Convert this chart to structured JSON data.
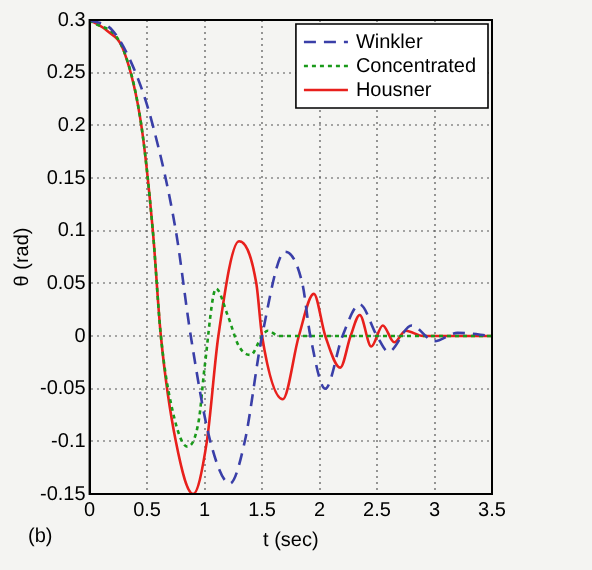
{
  "chart_data": {
    "type": "line",
    "xlabel": "t (sec)",
    "ylabel": "θ (rad)",
    "annotations": [
      "(b)"
    ],
    "xlim": [
      0,
      3.5
    ],
    "ylim": [
      -0.15,
      0.3
    ],
    "xticks": [
      0,
      0.5,
      1,
      1.5,
      2,
      2.5,
      3,
      3.5
    ],
    "yticks": [
      -0.15,
      -0.1,
      -0.05,
      0,
      0.05,
      0.1,
      0.15,
      0.2,
      0.25,
      0.3
    ],
    "grid": true,
    "legend": "top right",
    "marker": "none",
    "series": [
      {
        "name": "Winkler",
        "color": "#3a3fa8",
        "line_style": "dashed",
        "x": [
          0,
          0.2,
          0.4,
          0.55,
          0.75,
          0.88,
          1.05,
          1.22,
          1.35,
          1.5,
          1.7,
          1.85,
          1.92,
          2.05,
          2.2,
          2.35,
          2.5,
          2.6,
          2.8,
          3.0,
          3.2,
          3.5
        ],
        "values": [
          0.3,
          0.29,
          0.25,
          0.2,
          0.1,
          0,
          -0.1,
          -0.14,
          -0.1,
          0,
          0.08,
          0.05,
          0,
          -0.05,
          0,
          0.03,
          0,
          -0.015,
          0.01,
          -0.005,
          0.003,
          0
        ]
      },
      {
        "name": "Concentrated",
        "color": "#1a9a1a",
        "line_style": "dotted",
        "x": [
          0,
          0.3,
          0.45,
          0.55,
          0.62,
          0.72,
          0.85,
          0.95,
          1.0,
          1.1,
          1.2,
          1.3,
          1.4,
          1.5,
          1.55,
          1.65,
          3.5
        ],
        "values": [
          0.3,
          0.27,
          0.2,
          0.1,
          0,
          -0.07,
          -0.105,
          -0.08,
          -0.03,
          0.045,
          0.02,
          -0.01,
          -0.018,
          0,
          0.005,
          0,
          0
        ]
      },
      {
        "name": "Housner",
        "color": "#e8201c",
        "line_style": "solid",
        "x": [
          0,
          0.15,
          0.3,
          0.45,
          0.55,
          0.62,
          0.75,
          0.9,
          1.02,
          1.12,
          1.3,
          1.45,
          1.5,
          1.68,
          1.82,
          1.95,
          2.05,
          2.18,
          2.27,
          2.35,
          2.45,
          2.55,
          2.65,
          2.75,
          2.9,
          3.5
        ],
        "values": [
          0.3,
          0.29,
          0.27,
          0.2,
          0.1,
          0,
          -0.1,
          -0.15,
          -0.1,
          0,
          0.09,
          0.05,
          0,
          -0.06,
          0,
          0.04,
          0,
          -0.03,
          0,
          0.02,
          -0.01,
          0.01,
          -0.006,
          0.005,
          0,
          0
        ]
      }
    ]
  }
}
